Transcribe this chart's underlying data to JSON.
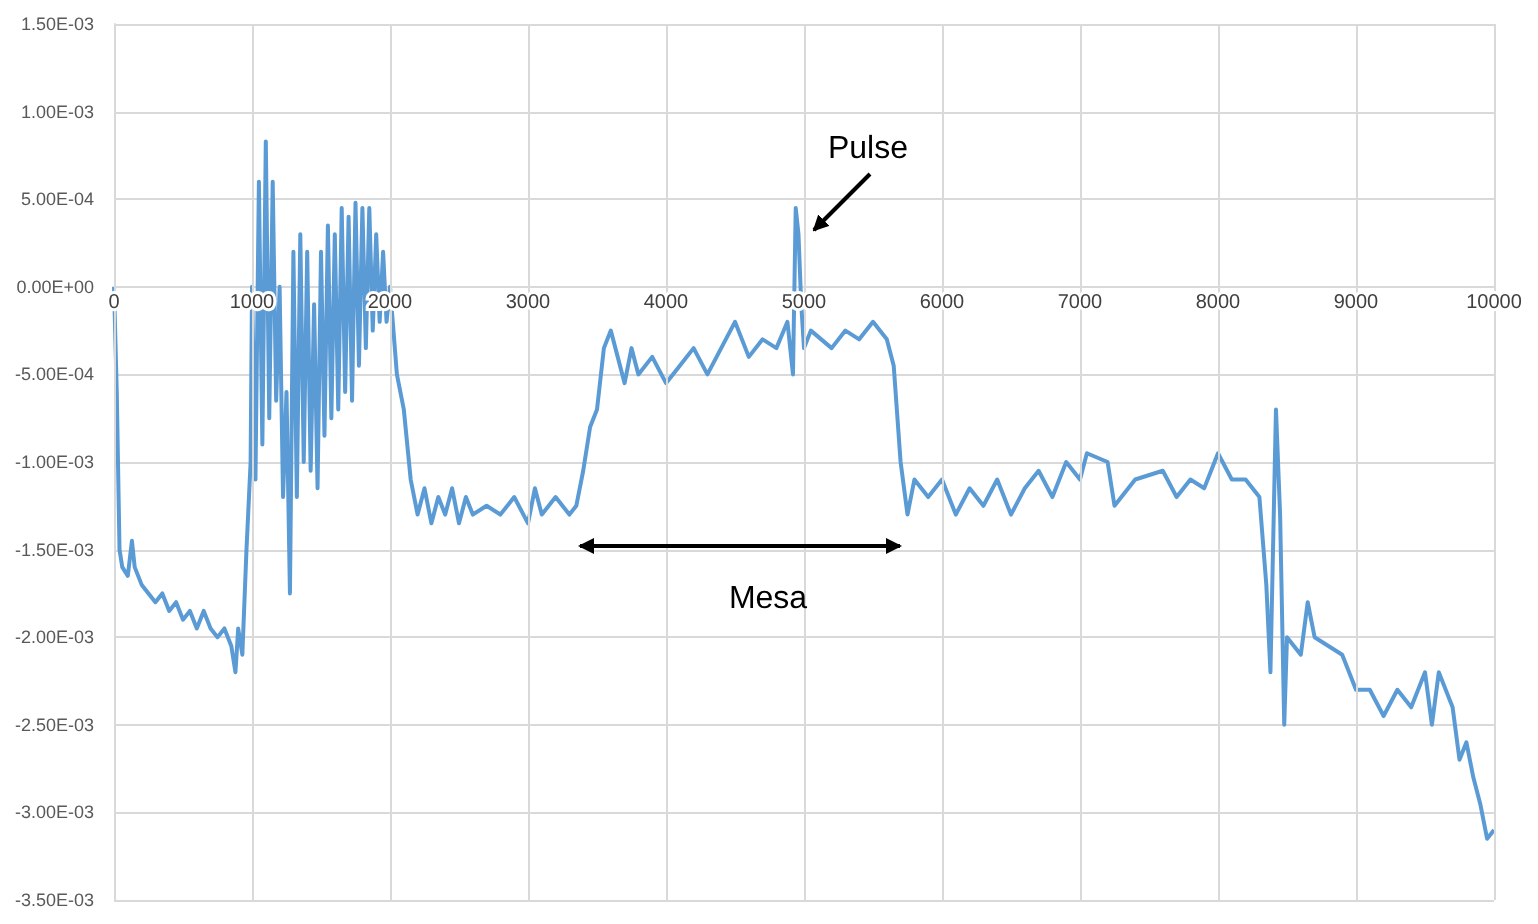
{
  "chart_data": {
    "type": "line",
    "x": [
      0,
      20,
      40,
      60,
      100,
      130,
      150,
      200,
      250,
      300,
      350,
      400,
      450,
      500,
      550,
      600,
      650,
      700,
      750,
      800,
      850,
      880,
      900,
      930,
      960,
      990,
      1000,
      1025,
      1050,
      1075,
      1100,
      1125,
      1150,
      1175,
      1200,
      1225,
      1250,
      1275,
      1300,
      1325,
      1350,
      1375,
      1400,
      1425,
      1450,
      1475,
      1500,
      1525,
      1550,
      1575,
      1600,
      1625,
      1650,
      1675,
      1700,
      1725,
      1750,
      1775,
      1800,
      1825,
      1850,
      1875,
      1900,
      1925,
      1950,
      1975,
      2000,
      2050,
      2100,
      2150,
      2200,
      2250,
      2300,
      2350,
      2400,
      2450,
      2500,
      2550,
      2600,
      2700,
      2800,
      2900,
      3000,
      3050,
      3100,
      3200,
      3300,
      3350,
      3400,
      3450,
      3500,
      3550,
      3600,
      3650,
      3700,
      3750,
      3800,
      3900,
      4000,
      4100,
      4200,
      4300,
      4400,
      4500,
      4600,
      4700,
      4800,
      4880,
      4920,
      4940,
      4960,
      4980,
      5000,
      5050,
      5200,
      5300,
      5400,
      5500,
      5600,
      5650,
      5700,
      5750,
      5800,
      5900,
      6000,
      6100,
      6200,
      6300,
      6400,
      6500,
      6600,
      6700,
      6800,
      6900,
      7000,
      7050,
      7200,
      7250,
      7400,
      7600,
      7700,
      7800,
      7900,
      8000,
      8100,
      8200,
      8300,
      8350,
      8380,
      8420,
      8450,
      8480,
      8500,
      8600,
      8650,
      8700,
      8800,
      8900,
      9000,
      9100,
      9200,
      9300,
      9400,
      9500,
      9550,
      9600,
      9700,
      9750,
      9800,
      9850,
      9900,
      9950,
      10000
    ],
    "series": [
      {
        "color": "#5b9bd5",
        "values": [
          0,
          -0.0006,
          -0.0015,
          -0.0016,
          -0.00165,
          -0.00145,
          -0.0016,
          -0.0017,
          -0.00175,
          -0.0018,
          -0.00175,
          -0.00185,
          -0.0018,
          -0.0019,
          -0.00185,
          -0.00195,
          -0.00185,
          -0.00195,
          -0.002,
          -0.00195,
          -0.00205,
          -0.0022,
          -0.00195,
          -0.0021,
          -0.0015,
          -0.001,
          0,
          -0.0011,
          0.0006,
          -0.0009,
          0.00083,
          -0.00075,
          0.0006,
          -0.00065,
          0,
          -0.0012,
          -0.0006,
          -0.00175,
          0.0002,
          -0.0012,
          0.0003,
          -0.001,
          0.0002,
          -0.00105,
          -0.0001,
          -0.00115,
          0.0002,
          -0.00085,
          0.00035,
          -0.00075,
          0.0003,
          -0.0007,
          0.00045,
          -0.0006,
          0.0004,
          -0.00065,
          0.00048,
          -0.00045,
          0.00045,
          -0.00035,
          0.00045,
          -0.00025,
          0.0003,
          -0.0002,
          0.0002,
          -0.0002,
          0,
          -0.0005,
          -0.0007,
          -0.0011,
          -0.0013,
          -0.00115,
          -0.00135,
          -0.0012,
          -0.0013,
          -0.00115,
          -0.00135,
          -0.0012,
          -0.0013,
          -0.00125,
          -0.0013,
          -0.0012,
          -0.00135,
          -0.00115,
          -0.0013,
          -0.0012,
          -0.0013,
          -0.00125,
          -0.00105,
          -0.0008,
          -0.0007,
          -0.00035,
          -0.00025,
          -0.0004,
          -0.00055,
          -0.00035,
          -0.0005,
          -0.0004,
          -0.00055,
          -0.00045,
          -0.00035,
          -0.0005,
          -0.00035,
          -0.0002,
          -0.0004,
          -0.0003,
          -0.00035,
          -0.0002,
          -0.0005,
          0.00045,
          0.0003,
          -0.0001,
          -0.00035,
          -0.00025,
          -0.00035,
          -0.00025,
          -0.0003,
          -0.0002,
          -0.0003,
          -0.00045,
          -0.001,
          -0.0013,
          -0.0011,
          -0.0012,
          -0.0011,
          -0.0013,
          -0.00115,
          -0.00125,
          -0.0011,
          -0.0013,
          -0.00115,
          -0.00105,
          -0.0012,
          -0.001,
          -0.0011,
          -0.00095,
          -0.001,
          -0.00125,
          -0.0011,
          -0.00105,
          -0.0012,
          -0.0011,
          -0.00115,
          -0.00095,
          -0.0011,
          -0.0011,
          -0.0012,
          -0.0017,
          -0.0022,
          -0.0007,
          -0.0013,
          -0.0025,
          -0.002,
          -0.0021,
          -0.0018,
          -0.002,
          -0.00205,
          -0.0021,
          -0.0023,
          -0.0023,
          -0.00245,
          -0.0023,
          -0.0024,
          -0.0022,
          -0.0025,
          -0.0022,
          -0.0024,
          -0.0027,
          -0.0026,
          -0.0028,
          -0.00295,
          -0.00315,
          -0.0031
        ]
      }
    ],
    "xlim": [
      0,
      10000
    ],
    "xticks": [
      0,
      1000,
      2000,
      3000,
      4000,
      5000,
      6000,
      7000,
      8000,
      9000,
      10000
    ],
    "ylim": [
      -0.0035,
      0.0015
    ],
    "yticks": [
      {
        "value": -0.0035,
        "label": "-3.50E-03"
      },
      {
        "value": -0.003,
        "label": "-3.00E-03"
      },
      {
        "value": -0.0025,
        "label": "-2.50E-03"
      },
      {
        "value": -0.002,
        "label": "-2.00E-03"
      },
      {
        "value": -0.0015,
        "label": "-1.50E-03"
      },
      {
        "value": -0.001,
        "label": "-1.00E-03"
      },
      {
        "value": -0.0005,
        "label": "-5.00E-04"
      },
      {
        "value": 0,
        "label": "0.00E+00"
      },
      {
        "value": 0.0005,
        "label": "5.00E-04"
      },
      {
        "value": 0.001,
        "label": "1.00E-03"
      },
      {
        "value": 0.0015,
        "label": "1.50E-03"
      }
    ],
    "grid": true,
    "marker": "none",
    "line_style": "solid",
    "annotations": [
      "Pulse",
      "Mesa"
    ]
  }
}
